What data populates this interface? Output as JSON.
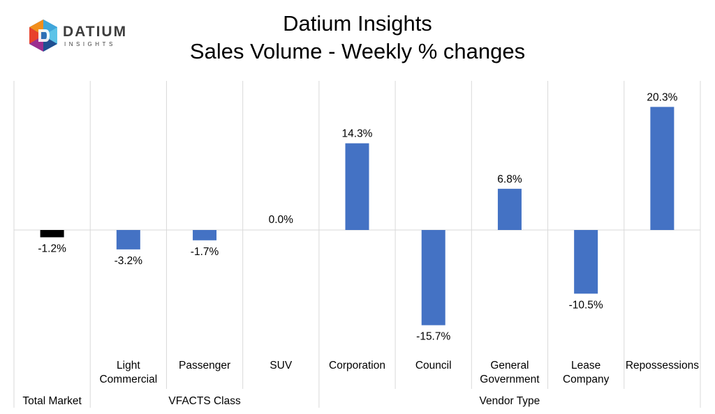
{
  "logo": {
    "word": "DATIUM",
    "sub": "INSIGHTS"
  },
  "title": {
    "line1": "Datium Insights",
    "line2": "Sales Volume - Weekly % changes"
  },
  "chart_data": {
    "type": "bar",
    "categories": [
      {
        "lines": [
          "",
          "Total Market"
        ]
      },
      {
        "lines": [
          "Light",
          "Commercial"
        ]
      },
      {
        "lines": [
          "Passenger"
        ]
      },
      {
        "lines": [
          "SUV"
        ]
      },
      {
        "lines": [
          "Corporation"
        ]
      },
      {
        "lines": [
          "Council"
        ]
      },
      {
        "lines": [
          "General",
          "Government"
        ]
      },
      {
        "lines": [
          "Lease",
          "Company"
        ]
      },
      {
        "lines": [
          "Repossessions"
        ]
      }
    ],
    "groups": [
      {
        "label": "",
        "start": 0,
        "end": 0
      },
      {
        "label": "VFACTS Class",
        "start": 1,
        "end": 3
      },
      {
        "label": "Vendor Type",
        "start": 4,
        "end": 8
      }
    ],
    "values": [
      -1.2,
      -3.2,
      -1.7,
      0.0,
      14.3,
      -15.7,
      6.8,
      -10.5,
      20.3
    ],
    "data_labels": [
      "-1.2%",
      "-3.2%",
      "-1.7%",
      "0.0%",
      "14.3%",
      "-15.7%",
      "6.8%",
      "-10.5%",
      "20.3%"
    ],
    "colors": [
      "#000000",
      "#4472c4",
      "#4472c4",
      "#4472c4",
      "#4472c4",
      "#4472c4",
      "#4472c4",
      "#4472c4",
      "#4472c4"
    ],
    "ylim": [
      -20,
      23
    ],
    "grid": false
  }
}
